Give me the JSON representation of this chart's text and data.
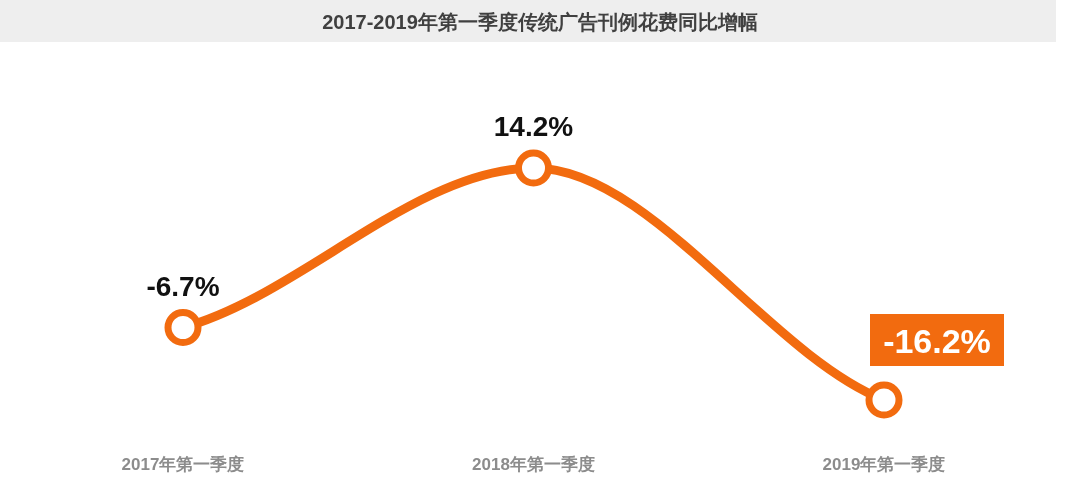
{
  "chart_data": {
    "type": "line",
    "title": "2017-2019年第一季度传统广告刊例花费同比增幅",
    "categories": [
      "2017年第一季度",
      "2018年第一季度",
      "2019年第一季度"
    ],
    "values": [
      -6.7,
      14.2,
      -16.2
    ],
    "value_labels": [
      "-6.7%",
      "14.2%",
      "-16.2%"
    ],
    "color": "#f26b0f",
    "marker": "circle"
  }
}
